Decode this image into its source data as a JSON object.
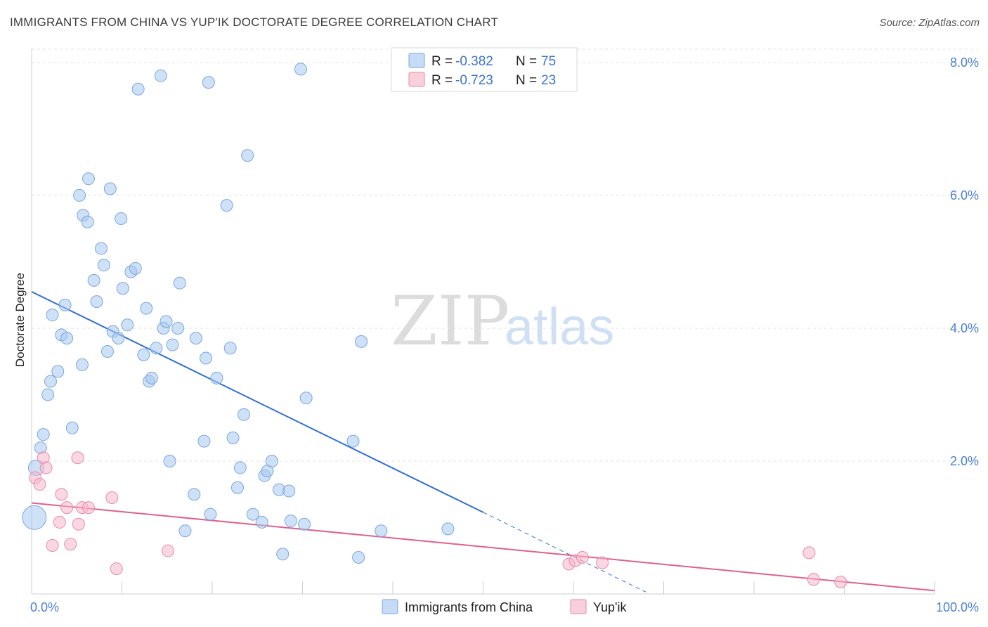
{
  "title": "IMMIGRANTS FROM CHINA VS YUP'IK DOCTORATE DEGREE CORRELATION CHART",
  "source": "Source: ZipAtlas.com",
  "watermark": {
    "zip": "ZIP",
    "atlas": "atlas"
  },
  "legend_top": [
    {
      "r_label": "R = ",
      "r_value": "-0.382",
      "n_label": "N = ",
      "n_value": "75",
      "color": "#a8c8f0"
    },
    {
      "r_label": "R = ",
      "r_value": "-0.723",
      "n_label": "N = ",
      "n_value": "23",
      "color": "#f5b8cc"
    }
  ],
  "legend_bottom": [
    {
      "label": "Immigrants from China",
      "color": "#a8c8f0"
    },
    {
      "label": "Yup'ik",
      "color": "#f5b8cc"
    }
  ],
  "colors": {
    "blue_point": "#a8c8f0",
    "blue_stroke": "#7aa6df",
    "blue_line": "#2f6fd6",
    "pink_point": "#f5b8cc",
    "pink_stroke": "#e98aa8",
    "pink_line": "#e0608f",
    "tick_text": "#4a7fd4"
  },
  "chart_data": {
    "type": "scatter",
    "title": "IMMIGRANTS FROM CHINA VS YUP'IK DOCTORATE DEGREE CORRELATION CHART",
    "xlabel": "",
    "ylabel": "Doctorate Degree",
    "xlim": [
      0,
      100
    ],
    "ylim": [
      0,
      8.2
    ],
    "x_tick_labels": [
      "0.0%",
      "100.0%"
    ],
    "y_ticks": [
      2,
      4,
      6,
      8
    ],
    "y_tick_labels": [
      "2.0%",
      "4.0%",
      "6.0%",
      "8.0%"
    ],
    "grid": "horizontal dashed",
    "legend_position": "top-center",
    "series": [
      {
        "name": "Immigrants from China",
        "r": -0.382,
        "n": 75,
        "trend": {
          "x0": 0,
          "y0": 4.55,
          "x1": 50,
          "y1": 1.23,
          "dashed_to_x": 68,
          "dashed_to_y": 0.03
        },
        "points": [
          [
            0.5,
            1.9
          ],
          [
            1.0,
            2.2
          ],
          [
            1.3,
            2.4
          ],
          [
            1.8,
            3.0
          ],
          [
            2.1,
            3.2
          ],
          [
            2.3,
            4.2
          ],
          [
            2.9,
            3.35
          ],
          [
            3.3,
            3.9
          ],
          [
            3.7,
            4.35
          ],
          [
            3.9,
            3.85
          ],
          [
            4.5,
            2.5
          ],
          [
            5.7,
            5.7
          ],
          [
            5.3,
            6.0
          ],
          [
            5.6,
            3.45
          ],
          [
            6.2,
            5.6
          ],
          [
            6.3,
            6.25
          ],
          [
            6.9,
            4.72
          ],
          [
            7.2,
            4.4
          ],
          [
            7.7,
            5.2
          ],
          [
            8.0,
            4.95
          ],
          [
            8.4,
            3.65
          ],
          [
            8.7,
            6.1
          ],
          [
            9.0,
            3.95
          ],
          [
            9.6,
            3.85
          ],
          [
            9.9,
            5.65
          ],
          [
            10.1,
            4.6
          ],
          [
            10.6,
            4.05
          ],
          [
            11.0,
            4.85
          ],
          [
            11.5,
            4.9
          ],
          [
            11.8,
            7.6
          ],
          [
            12.4,
            3.6
          ],
          [
            12.7,
            4.3
          ],
          [
            13.0,
            3.2
          ],
          [
            13.3,
            3.25
          ],
          [
            13.8,
            3.7
          ],
          [
            14.3,
            7.8
          ],
          [
            14.6,
            4.0
          ],
          [
            14.9,
            4.1
          ],
          [
            15.6,
            3.75
          ],
          [
            15.3,
            2.0
          ],
          [
            16.2,
            4.0
          ],
          [
            16.4,
            4.68
          ],
          [
            17.0,
            0.95
          ],
          [
            18.0,
            1.5
          ],
          [
            18.2,
            3.85
          ],
          [
            19.1,
            2.3
          ],
          [
            19.3,
            3.55
          ],
          [
            19.6,
            7.7
          ],
          [
            19.8,
            1.2
          ],
          [
            20.5,
            3.25
          ],
          [
            21.6,
            5.85
          ],
          [
            22.0,
            3.7
          ],
          [
            22.3,
            2.35
          ],
          [
            22.8,
            1.6
          ],
          [
            23.1,
            1.9
          ],
          [
            23.5,
            2.7
          ],
          [
            23.9,
            6.6
          ],
          [
            24.5,
            1.2
          ],
          [
            25.5,
            1.08
          ],
          [
            25.8,
            1.78
          ],
          [
            26.1,
            1.85
          ],
          [
            26.6,
            2.0
          ],
          [
            27.4,
            1.57
          ],
          [
            27.8,
            0.6
          ],
          [
            28.5,
            1.55
          ],
          [
            28.7,
            1.1
          ],
          [
            29.8,
            7.9
          ],
          [
            30.2,
            1.05
          ],
          [
            30.4,
            2.95
          ],
          [
            35.6,
            2.3
          ],
          [
            36.2,
            0.55
          ],
          [
            36.5,
            3.8
          ],
          [
            38.7,
            0.95
          ],
          [
            46.1,
            0.98
          ],
          [
            0.3,
            1.15
          ]
        ],
        "sizes_note": "two larger points near x=0"
      },
      {
        "name": "Yup'ik",
        "r": -0.723,
        "n": 23,
        "trend": {
          "x0": 0,
          "y0": 1.37,
          "x1": 100,
          "y1": 0.05
        },
        "points": [
          [
            0.4,
            1.75
          ],
          [
            0.9,
            1.65
          ],
          [
            1.3,
            2.05
          ],
          [
            1.6,
            1.9
          ],
          [
            2.3,
            0.73
          ],
          [
            3.1,
            1.08
          ],
          [
            3.3,
            1.5
          ],
          [
            3.9,
            1.3
          ],
          [
            4.3,
            0.75
          ],
          [
            5.1,
            2.05
          ],
          [
            5.2,
            1.05
          ],
          [
            5.6,
            1.3
          ],
          [
            6.3,
            1.3
          ],
          [
            8.9,
            1.45
          ],
          [
            9.4,
            0.38
          ],
          [
            15.1,
            0.65
          ],
          [
            59.5,
            0.45
          ],
          [
            60.2,
            0.5
          ],
          [
            61.0,
            0.55
          ],
          [
            63.2,
            0.47
          ],
          [
            86.1,
            0.62
          ],
          [
            86.6,
            0.22
          ],
          [
            89.6,
            0.18
          ]
        ]
      }
    ]
  }
}
